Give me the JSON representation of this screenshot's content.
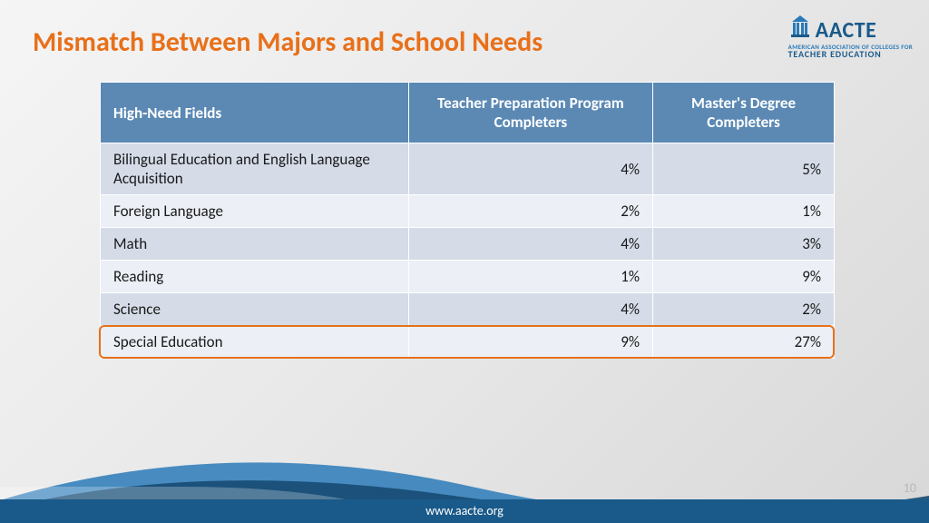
{
  "title": "Mismatch Between Majors and School Needs",
  "logo": {
    "main": "AACTE",
    "sub1": "AMERICAN ASSOCIATION OF COLLEGES FOR",
    "sub2": "TEACHER EDUCATION"
  },
  "table": {
    "type": "table",
    "header_bg": "#5b89b4",
    "header_color": "#ffffff",
    "row_odd_bg": "#d5dce8",
    "row_even_bg": "#ecf0f6",
    "highlight_border": "#e8701a",
    "columns": [
      "High-Need Fields",
      "Teacher Preparation Program Completers",
      "Master's Degree Completers"
    ],
    "rows": [
      [
        "Bilingual Education and English Language Acquisition",
        "4%",
        "5%"
      ],
      [
        "Foreign Language",
        "2%",
        "1%"
      ],
      [
        "Math",
        "4%",
        "3%"
      ],
      [
        "Reading",
        "1%",
        "9%"
      ],
      [
        "Science",
        "4%",
        "2%"
      ],
      [
        "Special Education",
        "9%",
        "27%"
      ]
    ],
    "highlight_row_index": 5,
    "font_size": 17
  },
  "footer": "www.aacte.org",
  "slide_number": "10",
  "colors": {
    "title": "#e8701a",
    "brand_dark": "#1a5a8a",
    "brand_light": "#2a7ab8",
    "swoosh_dark": "#164a72",
    "swoosh_mid": "#2a7ab8"
  }
}
